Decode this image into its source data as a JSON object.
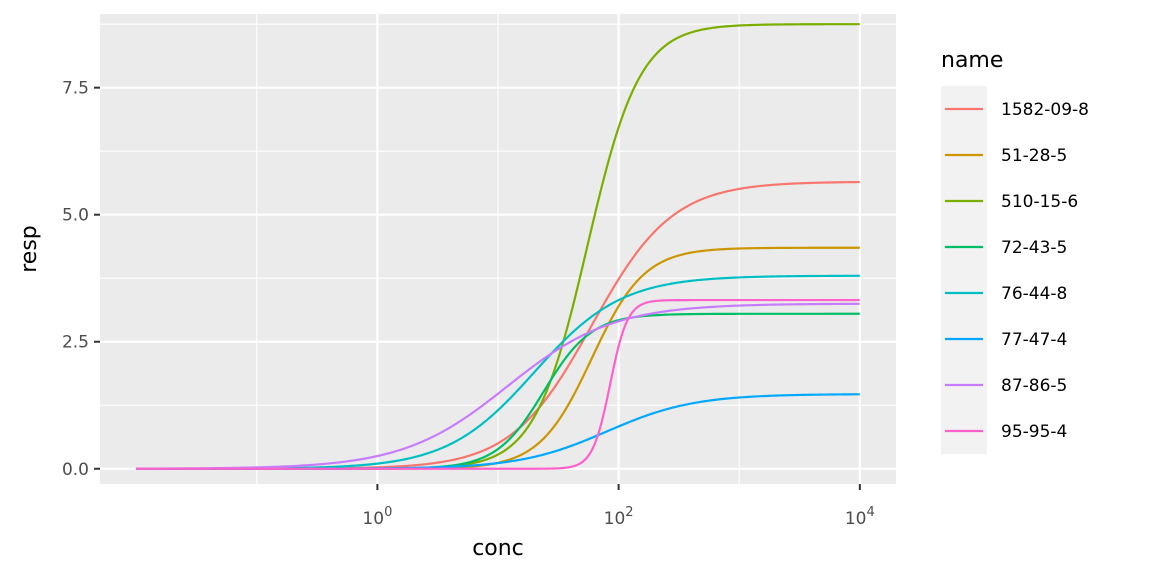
{
  "chart_data": {
    "type": "line",
    "title": "",
    "xlabel": "conc",
    "ylabel": "resp",
    "x_scale": "log10",
    "xlim": [
      0.01,
      10000
    ],
    "ylim": [
      -0.3,
      8.95
    ],
    "x_ticks": [
      {
        "value": 1,
        "base": "10",
        "exp": "0"
      },
      {
        "value": 100,
        "base": "10",
        "exp": "2"
      },
      {
        "value": 10000,
        "base": "10",
        "exp": "4"
      }
    ],
    "y_ticks": [
      {
        "value": 0,
        "label": "0.0"
      },
      {
        "value": 2.5,
        "label": "2.5"
      },
      {
        "value": 5,
        "label": "5.0"
      },
      {
        "value": 7.5,
        "label": "7.5"
      }
    ],
    "grid": true,
    "legend": {
      "title": "name",
      "position": "right"
    },
    "series": [
      {
        "name": "1582-09-8",
        "color": "#F8766D",
        "top": 5.65,
        "ac50": 60,
        "hill": 1.3
      },
      {
        "name": "51-28-5",
        "color": "#CD9600",
        "top": 4.35,
        "ac50": 60,
        "hill": 2.0
      },
      {
        "name": "510-15-6",
        "color": "#7CAE00",
        "top": 8.75,
        "ac50": 55,
        "hill": 2.0
      },
      {
        "name": "72-43-5",
        "color": "#00BE67",
        "top": 3.05,
        "ac50": 24,
        "hill": 2.2
      },
      {
        "name": "76-44-8",
        "color": "#00BFC4",
        "top": 3.8,
        "ac50": 20,
        "hill": 1.2
      },
      {
        "name": "77-47-4",
        "color": "#00A9FF",
        "top": 1.47,
        "ac50": 80,
        "hill": 1.2
      },
      {
        "name": "87-86-5",
        "color": "#C77CFF",
        "top": 3.25,
        "ac50": 12,
        "hill": 1.0
      },
      {
        "name": "95-95-4",
        "color": "#FF61CC",
        "top": 3.32,
        "ac50": 85,
        "hill": 6.0
      }
    ]
  }
}
